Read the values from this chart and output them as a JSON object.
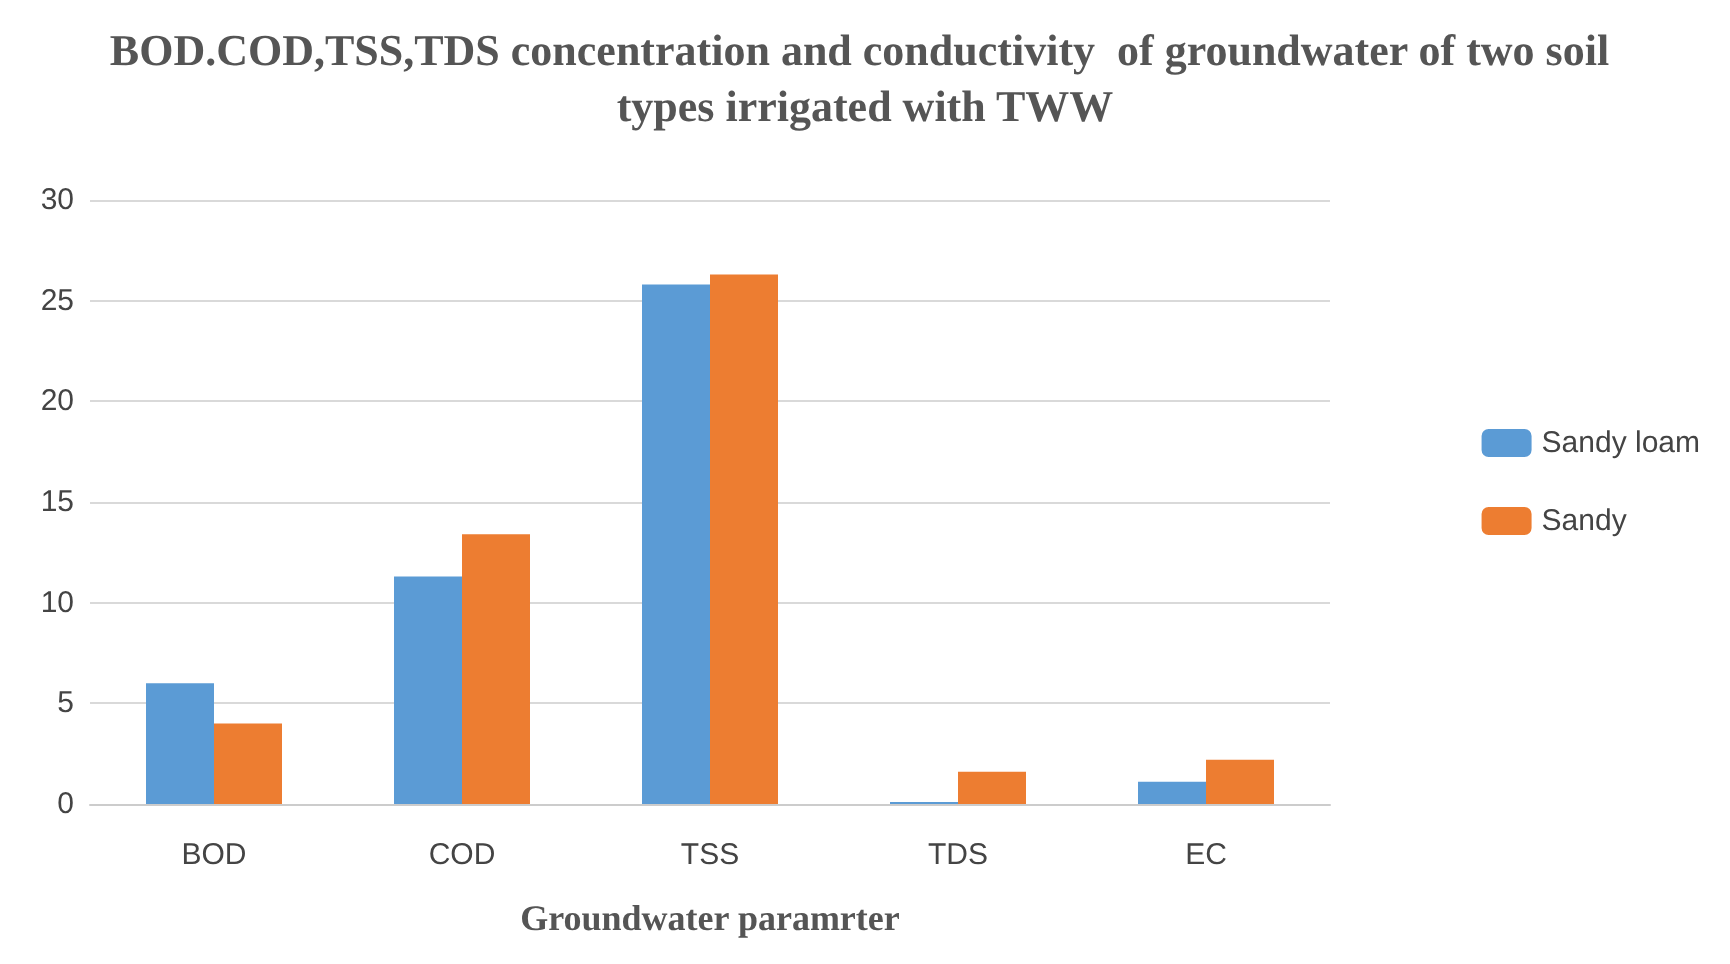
{
  "chart_data": {
    "type": "bar",
    "title": "BOD.COD,TSS,TDS concentration and conductivity  of groundwater of two soil types irrigated with TWW",
    "xlabel": "Groundwater paramrter",
    "categories": [
      "BOD",
      "COD",
      "TSS",
      "TDS",
      "EC"
    ],
    "series": [
      {
        "name": "Sandy loam",
        "color": "#5b9bd5",
        "values": [
          6,
          11.3,
          25.8,
          0.1,
          1.1
        ]
      },
      {
        "name": "Sandy",
        "color": "#ed7d31",
        "values": [
          4,
          13.4,
          26.3,
          1.6,
          2.2
        ]
      }
    ],
    "ylim": [
      0,
      30
    ],
    "yticks": [
      0,
      5,
      10,
      15,
      20,
      25,
      30
    ],
    "grid": "y",
    "legend": "right"
  }
}
